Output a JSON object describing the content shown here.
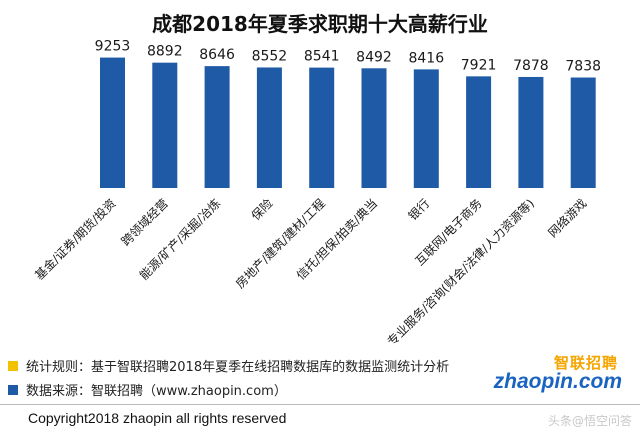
{
  "title": "成都2018年夏季求职期十大高薪行业",
  "colors": {
    "bar": "#1f5aa6",
    "legend_yellow": "#f2c200",
    "legend_blue": "#1f5aa6"
  },
  "chart_data": {
    "type": "bar",
    "title": "成都2018年夏季求职期十大高薪行业",
    "categories": [
      "基金/证券/期货/投资",
      "跨领域经营",
      "能源/矿产/采掘/冶炼",
      "保险",
      "房地产/建筑/建材/工程",
      "信托/担保/拍卖/典当",
      "银行",
      "互联网/电子商务",
      "专业服务/咨询(财会/法律/人力资源等)",
      "网络游戏"
    ],
    "values": [
      9253,
      8892,
      8646,
      8552,
      8541,
      8492,
      8416,
      7921,
      7878,
      7838
    ],
    "xlabel": "",
    "ylabel": "",
    "ylim": [
      0,
      10500
    ],
    "grid": false,
    "data_labels": true
  },
  "footer": {
    "note1": "统计规则：基于智联招聘2018年夏季在线招聘数据库的数据监测统计分析",
    "note2": "数据来源：智联招聘（www.zhaopin.com）",
    "copyright": "Copyright2018 zhaopin all rights reserved"
  },
  "logo": {
    "top": "智联招聘",
    "bottom": "zhaopin.com"
  },
  "watermark": "头条@悟空问答"
}
